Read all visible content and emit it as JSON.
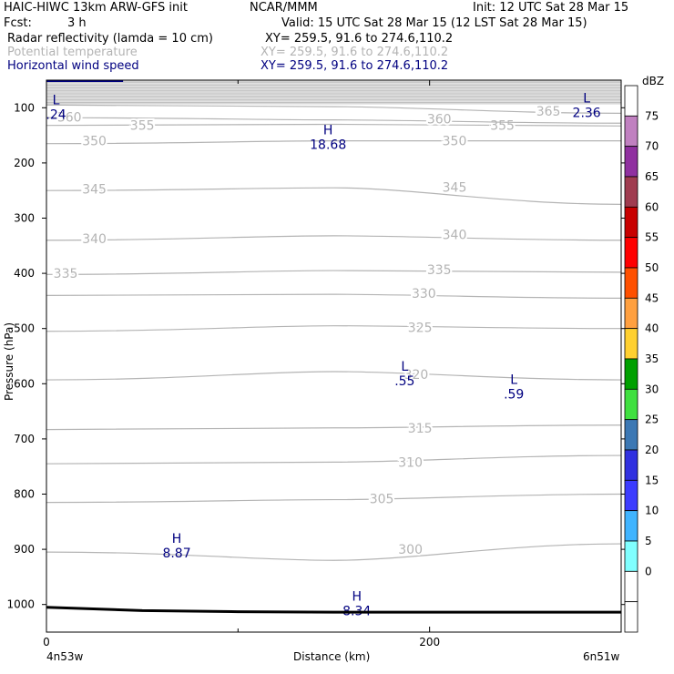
{
  "header": {
    "model_line": "HAIC-HIWC 13km ARW-GFS init",
    "org": "NCAR/MMM",
    "init": "Init: 12 UTC Sat 28 Mar 15",
    "fcst_label": "Fcst:",
    "fcst_value": "3 h",
    "valid": "Valid: 15 UTC Sat 28 Mar 15 (12 LST Sat 28 Mar 15)"
  },
  "fields": [
    {
      "name": "Radar reflectivity (lamda = 10 cm)",
      "coords": "XY= 259.5, 91.6 to 274.6,110.2",
      "color": "#000000"
    },
    {
      "name": "Potential temperature",
      "coords": "XY= 259.5, 91.6 to 274.6,110.2",
      "color": "#b4b4b4"
    },
    {
      "name": "Horizontal wind speed",
      "coords": "XY= 259.5, 91.6 to 274.6,110.2",
      "color": "#000080"
    }
  ],
  "chart_data": {
    "type": "contour_cross_section",
    "xlabel": "Distance (km)",
    "ylabel": "Pressure (hPa)",
    "x_ticks": [
      {
        "value": 0,
        "label": "0"
      },
      {
        "value": 200,
        "label": "200"
      }
    ],
    "x_minor_ticks": [
      100,
      300
    ],
    "xlim": [
      0,
      300
    ],
    "ylim": [
      50,
      1050
    ],
    "y_ticks": [
      100,
      200,
      300,
      400,
      500,
      600,
      700,
      800,
      900,
      1000
    ],
    "x_end_labels": {
      "left": "4n53w",
      "right": "6n51w"
    },
    "theta_contours": [
      {
        "label": "300",
        "p_left": 905,
        "p_mid": 905,
        "p_right": 890,
        "bulge": 15
      },
      {
        "label": "305",
        "p_left": 815,
        "p_mid": 810,
        "p_right": 800
      },
      {
        "label": "310",
        "p_left": 745,
        "p_mid": 742,
        "p_right": 730
      },
      {
        "label": "315",
        "p_left": 683,
        "p_mid": 680,
        "p_right": 675
      },
      {
        "label": "320",
        "p_left": 593,
        "p_mid": 578,
        "p_right": 593
      },
      {
        "label": "325",
        "p_left": 505,
        "p_mid": 495,
        "p_right": 500
      },
      {
        "label": "330",
        "p_left": 440,
        "p_mid": 438,
        "p_right": 445
      },
      {
        "label": "335",
        "p_left": 402,
        "p_mid": 395,
        "p_right": 398
      },
      {
        "label": "340",
        "p_left": 340,
        "p_mid": 332,
        "p_right": 340
      },
      {
        "label": "345",
        "p_left": 250,
        "p_mid": 245,
        "p_right": 275
      },
      {
        "label": "350",
        "p_left": 165,
        "p_mid": 160,
        "p_right": 160
      },
      {
        "label": "355",
        "p_left": 132,
        "p_mid": 130,
        "p_right": 133
      },
      {
        "label": "360",
        "p_left": 118,
        "p_mid": 122,
        "p_right": 128
      },
      {
        "label": "365",
        "p_left": 95,
        "p_mid": 98,
        "p_right": 110
      }
    ],
    "wind_extrema": [
      {
        "type": "L",
        "value": ".24",
        "x": 5,
        "p": 100
      },
      {
        "type": "L",
        "value": "2.36",
        "x": 282,
        "p": 97
      },
      {
        "type": "H",
        "value": "18.68",
        "x": 147,
        "p": 155
      },
      {
        "type": "L",
        "value": ".55",
        "x": 187,
        "p": 583
      },
      {
        "type": "L",
        "value": ".59",
        "x": 244,
        "p": 607
      },
      {
        "type": "H",
        "value": "8.87",
        "x": 68,
        "p": 895
      },
      {
        "type": "H",
        "value": "8.34",
        "x": 162,
        "p": 1000
      }
    ],
    "surface_pressure": {
      "x": [
        0,
        50,
        100,
        150,
        200,
        250,
        300
      ],
      "p": [
        1005,
        1011,
        1013,
        1014,
        1014,
        1014,
        1014
      ]
    },
    "colorbar": {
      "unit": "dBZ",
      "levels": [
        {
          "value": 75,
          "color": "#ffffff"
        },
        {
          "value": 70,
          "color": "#c080c0"
        },
        {
          "value": 65,
          "color": "#9030a0"
        },
        {
          "value": 60,
          "color": "#a03c50"
        },
        {
          "value": 55,
          "color": "#c80000"
        },
        {
          "value": 50,
          "color": "#ff0000"
        },
        {
          "value": 45,
          "color": "#ff5000"
        },
        {
          "value": 40,
          "color": "#ffa040"
        },
        {
          "value": 35,
          "color": "#ffd030"
        },
        {
          "value": 30,
          "color": "#00a000"
        },
        {
          "value": 25,
          "color": "#40e040"
        },
        {
          "value": 20,
          "color": "#3c78b4"
        },
        {
          "value": 15,
          "color": "#3030e0"
        },
        {
          "value": 10,
          "color": "#3c3cff"
        },
        {
          "value": 5,
          "color": "#40b4ff"
        },
        {
          "value": 0,
          "color": "#80ffff"
        },
        {
          "value": null,
          "color": "#ffffff"
        },
        {
          "value": null,
          "color": "#ffffff"
        }
      ]
    }
  }
}
